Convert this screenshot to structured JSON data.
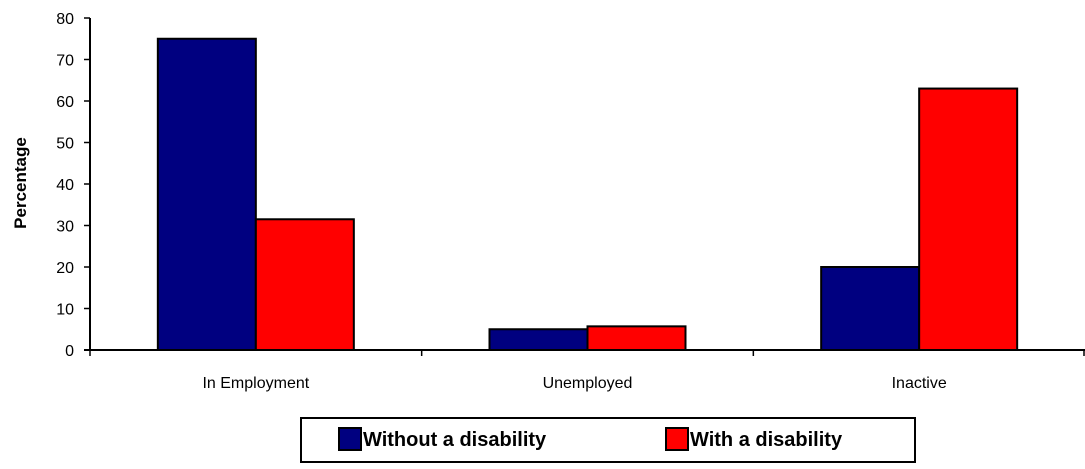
{
  "chart_data": {
    "type": "bar",
    "title": "",
    "xlabel": "",
    "ylabel": "Percentage",
    "categories": [
      "In Employment",
      "Unemployed",
      "Inactive"
    ],
    "series": [
      {
        "name": "Without a disability",
        "values": [
          75,
          5,
          20
        ],
        "color": "#000080"
      },
      {
        "name": "With a disability",
        "values": [
          31.5,
          5.7,
          63
        ],
        "color": "#ff0000"
      }
    ],
    "ylim": [
      0,
      80
    ],
    "yticks": [
      0,
      10,
      20,
      30,
      40,
      50,
      60,
      70,
      80
    ],
    "grid": false,
    "legend_position": "bottom"
  }
}
